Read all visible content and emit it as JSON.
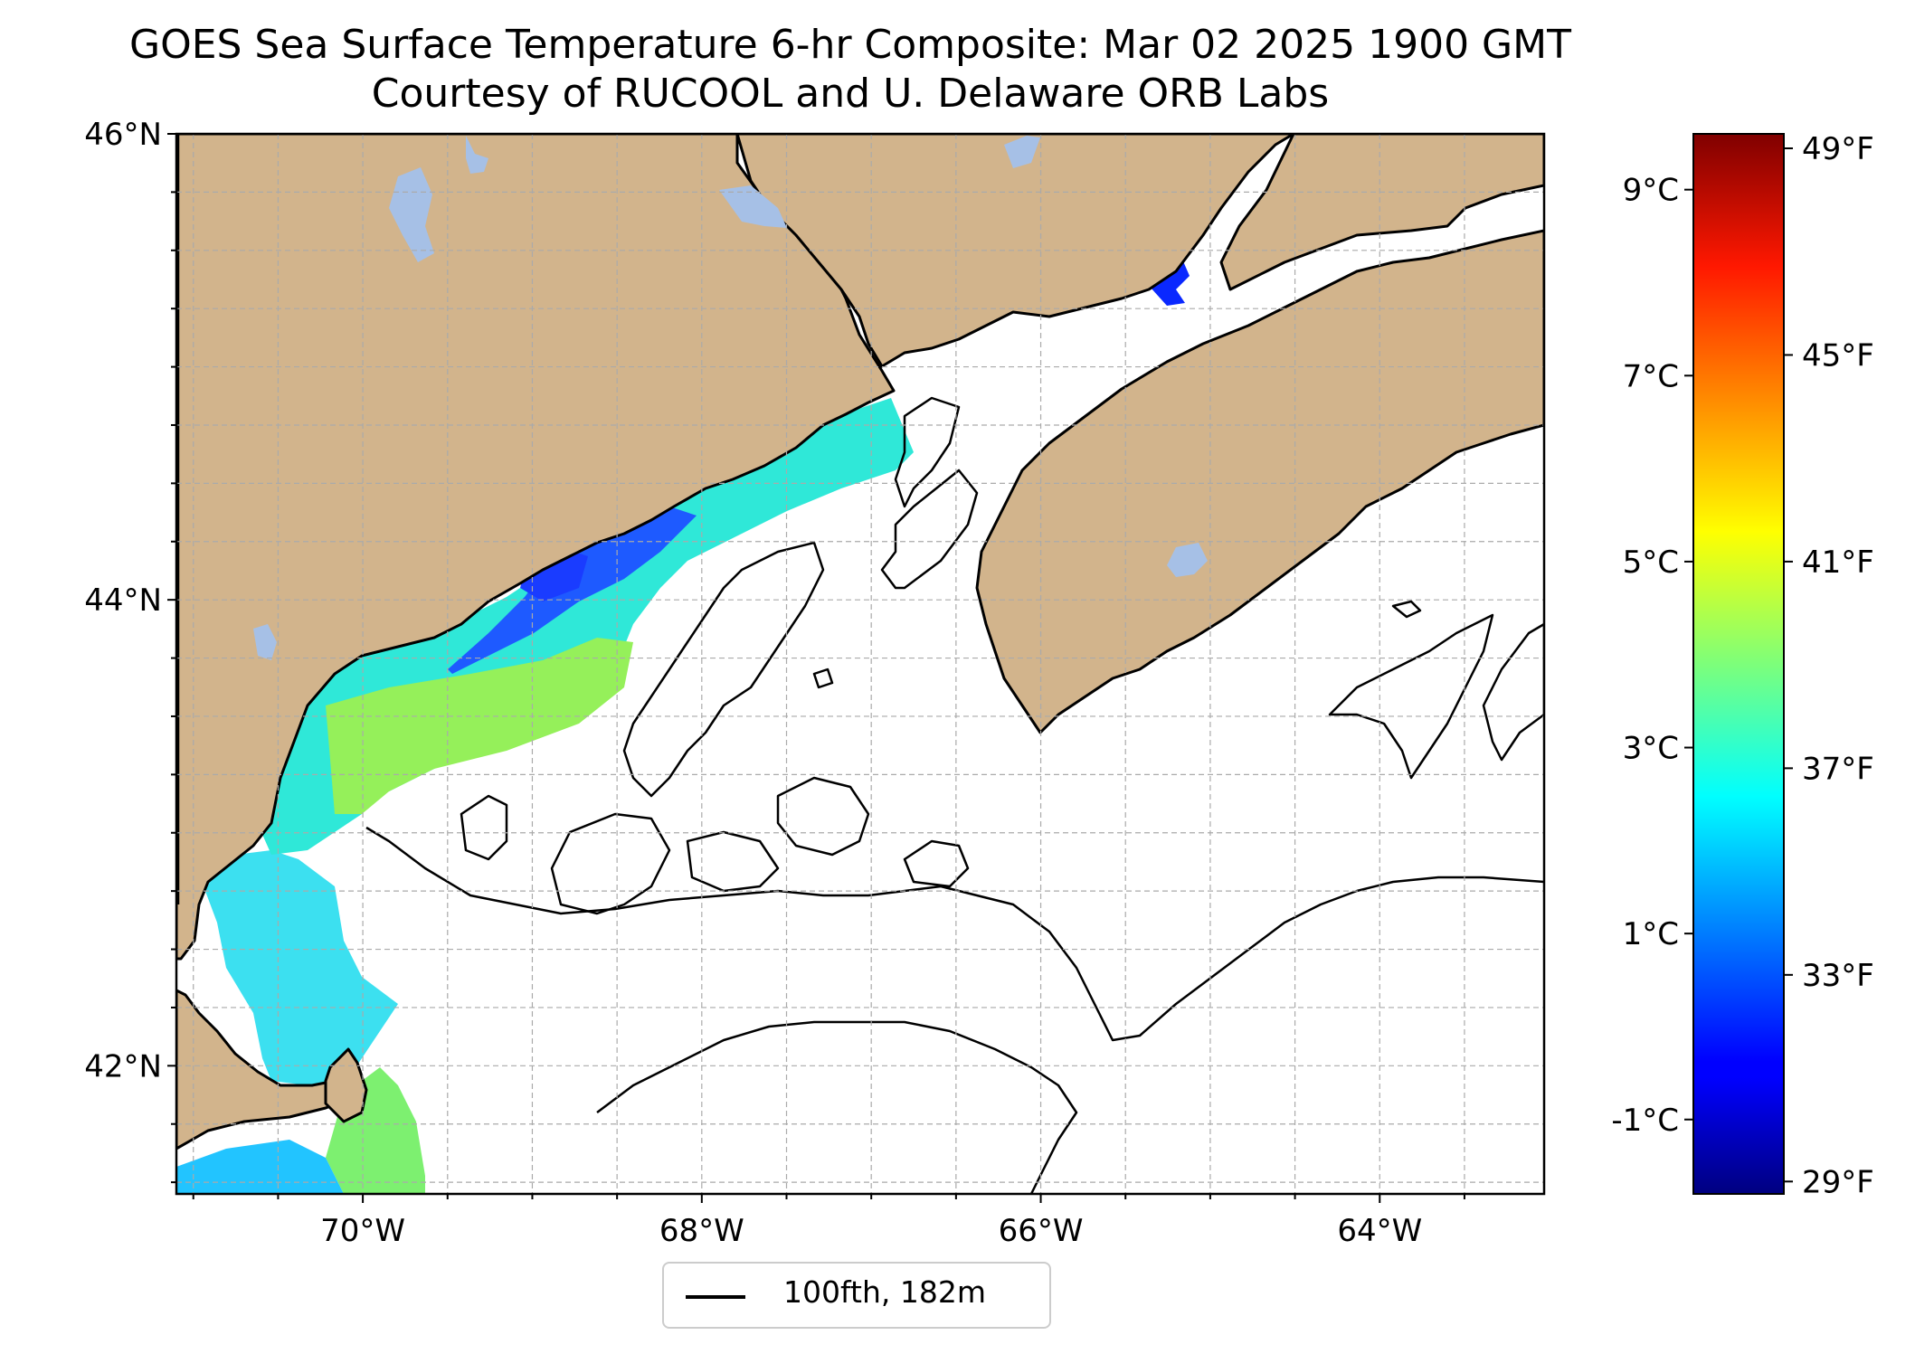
{
  "title": {
    "line1": "GOES Sea Surface Temperature 6-hr Composite: Mar 02 2025 1900 GMT",
    "line2": "Courtesy of RUCOOL and U. Delaware ORB Labs"
  },
  "map": {
    "extent": {
      "lon_min": -71.1,
      "lon_max": -63.03,
      "lat_min": 41.45,
      "lat_max": 46.0
    },
    "lat_ticks": [
      {
        "value": 46,
        "label": "46°N"
      },
      {
        "value": 44,
        "label": "44°N"
      },
      {
        "value": 42,
        "label": "42°N"
      }
    ],
    "lon_ticks": [
      {
        "value": -70,
        "label": "70°W"
      },
      {
        "value": -68,
        "label": "68°W"
      },
      {
        "value": -66,
        "label": "66°W"
      },
      {
        "value": -64,
        "label": "64°W"
      }
    ],
    "grid": true,
    "land_color": "#d2b48c",
    "lake_color": "#a6c0e6",
    "ocean_color": "#ffffff"
  },
  "legend": {
    "label": "100fth, 182m",
    "placement": "bottom-center"
  },
  "colorbar": {
    "colormap": "jet",
    "range_c": [
      -1.8,
      9.6
    ],
    "celsius_ticks": [
      {
        "value": 9,
        "label": "9°C"
      },
      {
        "value": 7,
        "label": "7°C"
      },
      {
        "value": 5,
        "label": "5°C"
      },
      {
        "value": 3,
        "label": "3°C"
      },
      {
        "value": 1,
        "label": "1°C"
      },
      {
        "value": -1,
        "label": "-1°C"
      }
    ],
    "fahrenheit_ticks": [
      {
        "value": 49,
        "label": "49°F"
      },
      {
        "value": 45,
        "label": "45°F"
      },
      {
        "value": 41,
        "label": "41°F"
      },
      {
        "value": 37,
        "label": "37°F"
      },
      {
        "value": 33,
        "label": "33°F"
      },
      {
        "value": 29,
        "label": "29°F"
      }
    ]
  }
}
